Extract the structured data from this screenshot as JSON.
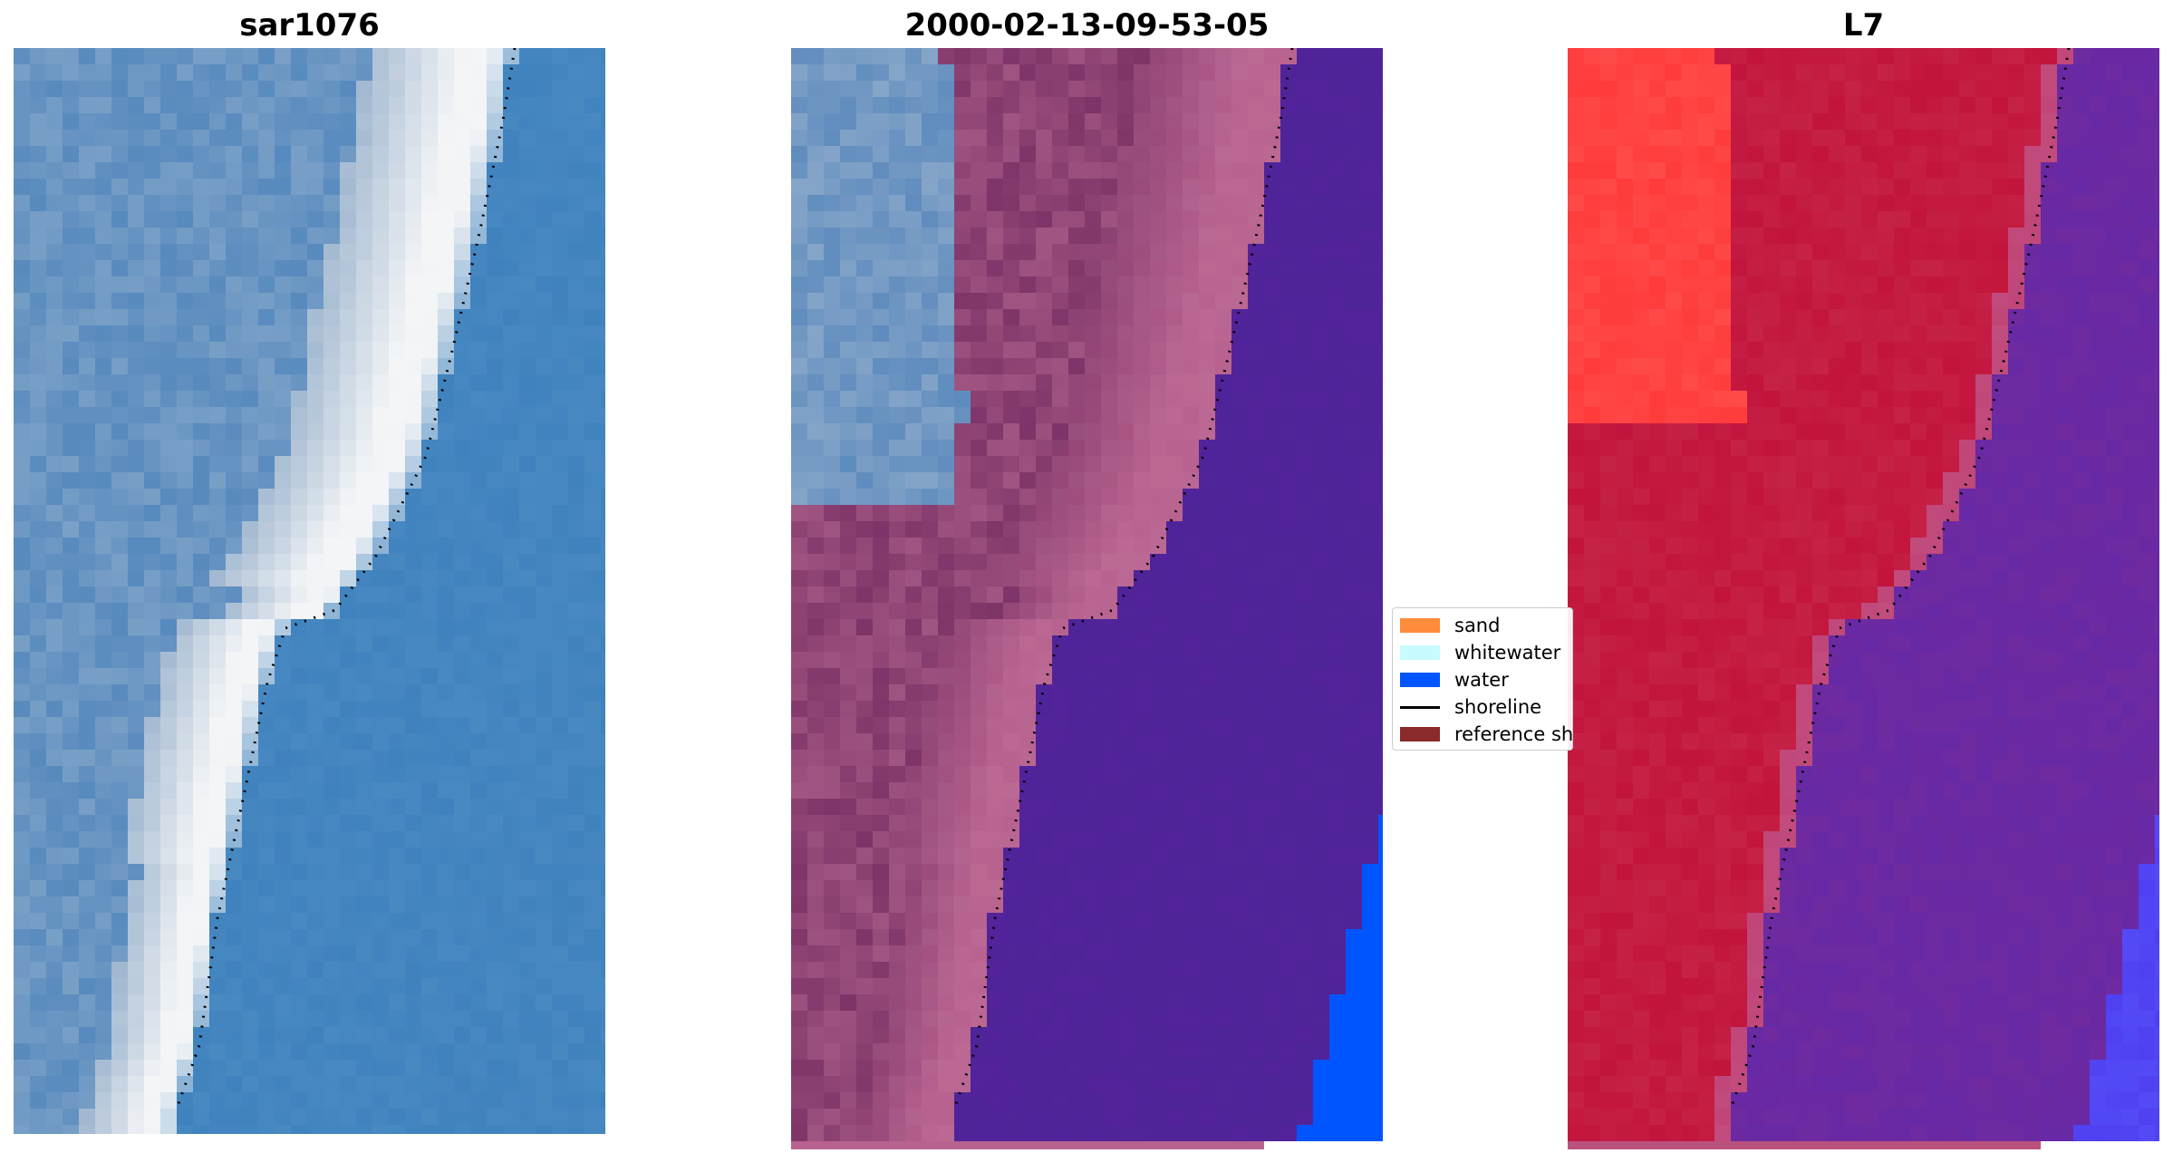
{
  "panels": [
    {
      "title": "sar1076",
      "kind": "rgb"
    },
    {
      "title": "2000-02-13-09-53-05",
      "kind": "classified"
    },
    {
      "title": "L7",
      "kind": "index"
    }
  ],
  "legend": {
    "items": [
      {
        "label": "sand",
        "color": "#ff8c3a",
        "type": "patch"
      },
      {
        "label": "whitewater",
        "color": "#c8fbff",
        "type": "patch"
      },
      {
        "label": "water",
        "color": "#0055ff",
        "type": "patch"
      },
      {
        "label": "shoreline",
        "color": "#000000",
        "type": "line"
      },
      {
        "label": "reference sh",
        "color": "#8b2a2a",
        "type": "patch"
      }
    ]
  },
  "colors": {
    "ocean_blue": "#3f82bd",
    "surf_white": "#f2f4f6",
    "beach_grey": "#9fb6cf",
    "sand_overlay": "#b8628f",
    "sand_dark": "#7e3468",
    "water_overlay": "#52239a",
    "water_class": "#0055ff",
    "index_red": "#c2143c",
    "index_bright_red": "#ff3b3b",
    "index_purple": "#6f2aa0",
    "index_blue": "#4f40f0",
    "shoreline": "#000000"
  }
}
